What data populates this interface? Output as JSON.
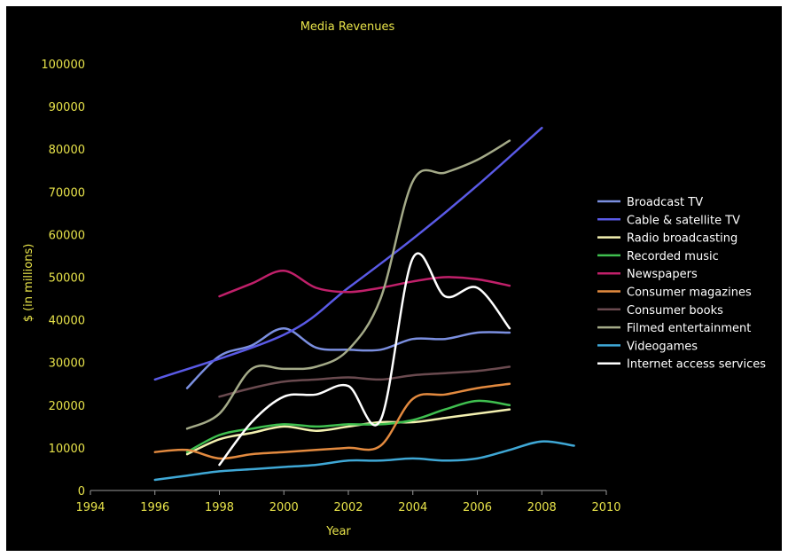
{
  "chart_data": {
    "type": "line",
    "title": "Media Revenues",
    "xlabel": "Year",
    "ylabel": "$ (in millions)",
    "xlim": [
      1994,
      2010
    ],
    "ylim": [
      0,
      100000
    ],
    "xticks": [
      1994,
      1996,
      1998,
      2000,
      2002,
      2004,
      2006,
      2008,
      2010
    ],
    "yticks": [
      0,
      10000,
      20000,
      30000,
      40000,
      50000,
      60000,
      70000,
      80000,
      90000,
      100000
    ],
    "grid": false,
    "legend_position": "right",
    "series": [
      {
        "name": "Broadcast TV",
        "color": "#7b8fe0",
        "x": [
          1997,
          1998,
          1999,
          2000,
          2001,
          2002,
          2003,
          2004,
          2005,
          2006,
          2007
        ],
        "y": [
          24000,
          31500,
          34000,
          38000,
          33500,
          33000,
          33000,
          35500,
          35500,
          37000,
          37000
        ]
      },
      {
        "name": "Cable & satellite TV",
        "color": "#5a5ae6",
        "x": [
          1996,
          2000,
          2002,
          2004,
          2006,
          2008
        ],
        "y": [
          26000,
          36500,
          47500,
          59000,
          71500,
          85000
        ]
      },
      {
        "name": "Radio broadcasting",
        "color": "#f3f0b0",
        "x": [
          1997,
          1998,
          1999,
          2000,
          2001,
          2002,
          2003,
          2004,
          2005,
          2006,
          2007
        ],
        "y": [
          8500,
          12000,
          13500,
          15000,
          14000,
          15000,
          16000,
          16000,
          17000,
          18000,
          19000
        ]
      },
      {
        "name": "Recorded music",
        "color": "#3fbf4f",
        "x": [
          1997,
          1998,
          1999,
          2000,
          2001,
          2002,
          2003,
          2004,
          2005,
          2006,
          2007
        ],
        "y": [
          9000,
          13000,
          14500,
          15500,
          15000,
          15500,
          15500,
          16500,
          19000,
          21000,
          20000
        ]
      },
      {
        "name": "Newspapers",
        "color": "#c0206a",
        "x": [
          1998,
          1999,
          2000,
          2001,
          2002,
          2003,
          2004,
          2005,
          2006,
          2007
        ],
        "y": [
          45500,
          48500,
          51500,
          47500,
          46500,
          47500,
          49000,
          50000,
          49500,
          48000
        ]
      },
      {
        "name": "Consumer magazines",
        "color": "#e38a3f",
        "x": [
          1996,
          1997,
          1998,
          1999,
          2000,
          2001,
          2002,
          2003,
          2004,
          2005,
          2006,
          2007
        ],
        "y": [
          9000,
          9500,
          7500,
          8500,
          9000,
          9500,
          10000,
          10500,
          21500,
          22500,
          24000,
          25000
        ]
      },
      {
        "name": "Consumer books",
        "color": "#6a4a4f",
        "x": [
          1998,
          1999,
          2000,
          2001,
          2002,
          2003,
          2004,
          2005,
          2006,
          2007
        ],
        "y": [
          22000,
          24000,
          25500,
          26000,
          26500,
          26000,
          27000,
          27500,
          28000,
          29000
        ]
      },
      {
        "name": "Filmed entertainment",
        "color": "#a4aa88",
        "x": [
          1997,
          1998,
          1999,
          2000,
          2001,
          2002,
          2003,
          2004,
          2005,
          2006,
          2007
        ],
        "y": [
          14500,
          18000,
          28500,
          28500,
          29000,
          33000,
          45000,
          72500,
          74500,
          77500,
          82000
        ]
      },
      {
        "name": "Videogames",
        "color": "#3fa8d6",
        "x": [
          1996,
          1997,
          1998,
          1999,
          2000,
          2001,
          2002,
          2003,
          2004,
          2005,
          2006,
          2007,
          2008,
          2009
        ],
        "y": [
          2500,
          3500,
          4500,
          5000,
          5500,
          6000,
          7000,
          7000,
          7500,
          7000,
          7500,
          9500,
          11500,
          10500
        ]
      },
      {
        "name": "Internet access services",
        "color": "#ffffff",
        "x": [
          1998,
          1999,
          2000,
          2001,
          2002,
          2003,
          2004,
          2005,
          2006,
          2007
        ],
        "y": [
          6000,
          16000,
          22000,
          22500,
          24500,
          16500,
          54500,
          45500,
          47500,
          38000
        ]
      }
    ]
  }
}
